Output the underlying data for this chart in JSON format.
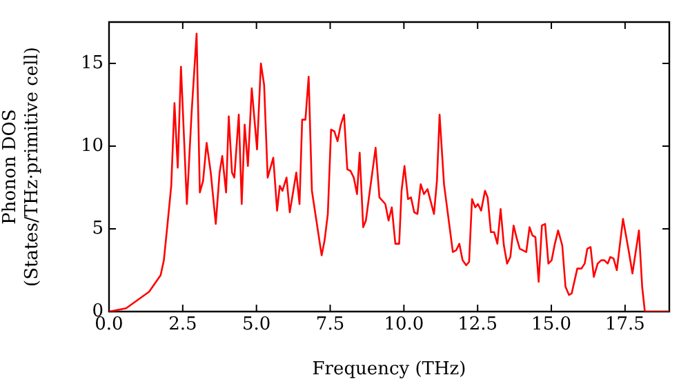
{
  "chart_data": {
    "type": "line",
    "xlabel": "Frequency (THz)",
    "ylabel": "Phonon DOS\n(States/THz·primitive cell)",
    "xlim": [
      0,
      19
    ],
    "ylim": [
      0,
      17.5
    ],
    "xticks": [
      {
        "value": 0,
        "label": "0.0"
      },
      {
        "value": 2.5,
        "label": "2.5"
      },
      {
        "value": 5,
        "label": "5.0"
      },
      {
        "value": 7.5,
        "label": "7.5"
      },
      {
        "value": 10,
        "label": "10.0"
      },
      {
        "value": 12.5,
        "label": "12.5"
      },
      {
        "value": 15,
        "label": "15.0"
      },
      {
        "value": 17.5,
        "label": "17.5"
      }
    ],
    "yticks": [
      0,
      5,
      10,
      15
    ],
    "grid": false,
    "legend": false,
    "marker": "none",
    "line_style": "solid",
    "series": [
      {
        "color": "#ff0000",
        "x": [
          0,
          0.58,
          1.36,
          1.75,
          1.86,
          1.99,
          2.11,
          2.22,
          2.33,
          2.44,
          2.64,
          2.8,
          2.97,
          3.08,
          3.19,
          3.31,
          3.45,
          3.62,
          3.75,
          3.84,
          3.97,
          4.06,
          4.17,
          4.25,
          4.4,
          4.5,
          4.6,
          4.71,
          4.84,
          5.02,
          5.15,
          5.26,
          5.38,
          5.57,
          5.7,
          5.79,
          5.88,
          6.02,
          6.13,
          6.35,
          6.46,
          6.55,
          6.66,
          6.77,
          6.88,
          7.21,
          7.31,
          7.42,
          7.53,
          7.64,
          7.75,
          7.86,
          7.97,
          8.08,
          8.19,
          8.3,
          8.41,
          8.5,
          8.62,
          8.71,
          9.04,
          9.17,
          9.37,
          9.48,
          9.59,
          9.71,
          9.84,
          9.92,
          10.02,
          10.14,
          10.24,
          10.35,
          10.46,
          10.57,
          10.68,
          10.8,
          11.02,
          11.12,
          11.21,
          11.36,
          11.66,
          11.77,
          11.88,
          11.99,
          12.11,
          12.21,
          12.31,
          12.42,
          12.51,
          12.62,
          12.75,
          12.84,
          12.95,
          13.06,
          13.17,
          13.28,
          13.39,
          13.5,
          13.61,
          13.72,
          13.83,
          13.93,
          14.15,
          14.26,
          14.36,
          14.46,
          14.57,
          14.68,
          14.79,
          14.9,
          15.01,
          15.12,
          15.23,
          15.37,
          15.48,
          15.6,
          15.69,
          15.88,
          16.02,
          16.13,
          16.22,
          16.33,
          16.44,
          16.57,
          16.69,
          16.8,
          16.91,
          17,
          17.11,
          17.22,
          17.43,
          17.63,
          17.75,
          17.97,
          18.08,
          18.17,
          19
        ],
        "values": [
          0,
          0.2,
          1.2,
          2.2,
          3.1,
          5.4,
          7.6,
          12.6,
          8.7,
          14.8,
          6.5,
          12,
          16.8,
          7.2,
          7.9,
          10.2,
          8.4,
          5.3,
          8.4,
          9.4,
          7.2,
          11.8,
          8.4,
          8.1,
          11.9,
          6.5,
          11.3,
          8.8,
          13.5,
          9.8,
          15,
          13.7,
          8.1,
          9.3,
          6.1,
          7.6,
          7.3,
          8.1,
          6,
          8.4,
          6.5,
          11.6,
          11.6,
          14.2,
          7.3,
          3.4,
          4.3,
          5.9,
          11,
          10.9,
          10.3,
          11.3,
          11.9,
          8.6,
          8.5,
          8.1,
          7.1,
          9.6,
          5.1,
          5.5,
          9.9,
          6.9,
          6.5,
          5.5,
          6.3,
          4.1,
          4.1,
          7.3,
          8.8,
          6.8,
          6.9,
          6,
          5.9,
          7.7,
          7.1,
          7.4,
          5.9,
          7.9,
          11.9,
          7.7,
          3.6,
          3.7,
          4.1,
          3.1,
          2.8,
          3,
          6.8,
          6.3,
          6.5,
          6.1,
          7.3,
          6.9,
          4.8,
          4.8,
          4.1,
          6.2,
          4,
          2.9,
          3.3,
          5.2,
          4.4,
          3.8,
          3.6,
          5.1,
          4.6,
          4.5,
          1.8,
          5.2,
          5.3,
          2.9,
          3.1,
          4.1,
          4.9,
          4,
          1.5,
          1,
          1.1,
          2.6,
          2.6,
          2.9,
          3.8,
          3.9,
          2.1,
          2.9,
          3.1,
          3.1,
          2.9,
          3.3,
          3.2,
          2.5,
          5.6,
          3.6,
          2.3,
          4.9,
          1.5,
          0,
          0
        ]
      }
    ]
  }
}
